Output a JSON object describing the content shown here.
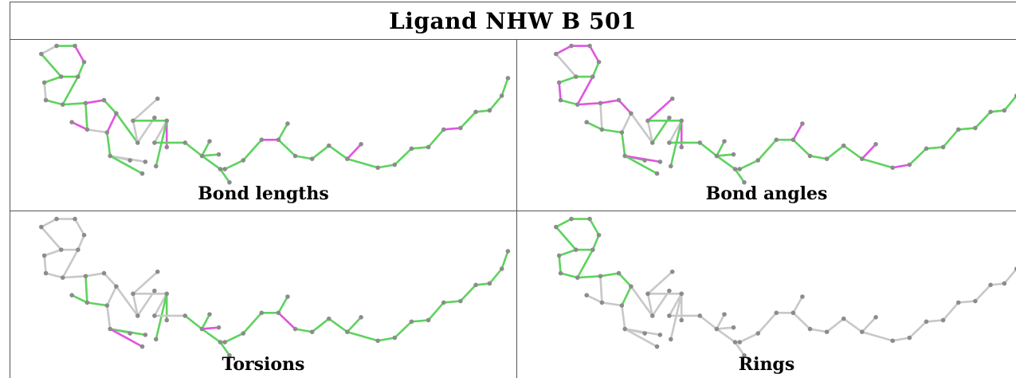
{
  "title": "Ligand NHW B 501",
  "colors": {
    "ok": "#5ed35e",
    "outlier": "#e055e0",
    "neutral": "#c8c8c8",
    "atom": "#8c8c8c",
    "grid": "#555555"
  },
  "panels": [
    {
      "caption": "Bond lengths",
      "mode": "lengths"
    },
    {
      "caption": "Bond angles",
      "mode": "angles"
    },
    {
      "caption": "Torsions",
      "mode": "torsions"
    },
    {
      "caption": "Rings",
      "mode": "rings"
    }
  ]
}
